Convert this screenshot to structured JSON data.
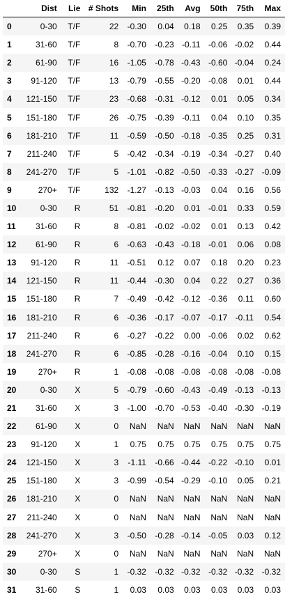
{
  "table": {
    "columns": [
      "",
      "Dist",
      "Lie",
      "# Shots",
      "Min",
      "25th",
      "Avg",
      "50th",
      "75th",
      "Max"
    ],
    "rows": [
      [
        "0",
        "0-30",
        "T/F",
        "22",
        "-0.30",
        "0.04",
        "0.18",
        "0.25",
        "0.35",
        "0.39"
      ],
      [
        "1",
        "31-60",
        "T/F",
        "8",
        "-0.70",
        "-0.23",
        "-0.11",
        "-0.06",
        "-0.02",
        "0.44"
      ],
      [
        "2",
        "61-90",
        "T/F",
        "16",
        "-1.05",
        "-0.78",
        "-0.43",
        "-0.60",
        "-0.04",
        "0.24"
      ],
      [
        "3",
        "91-120",
        "T/F",
        "13",
        "-0.79",
        "-0.55",
        "-0.20",
        "-0.08",
        "0.01",
        "0.44"
      ],
      [
        "4",
        "121-150",
        "T/F",
        "23",
        "-0.68",
        "-0.31",
        "-0.12",
        "0.01",
        "0.05",
        "0.34"
      ],
      [
        "5",
        "151-180",
        "T/F",
        "26",
        "-0.75",
        "-0.39",
        "-0.11",
        "0.04",
        "0.10",
        "0.35"
      ],
      [
        "6",
        "181-210",
        "T/F",
        "11",
        "-0.59",
        "-0.50",
        "-0.18",
        "-0.35",
        "0.25",
        "0.31"
      ],
      [
        "7",
        "211-240",
        "T/F",
        "5",
        "-0.42",
        "-0.34",
        "-0.19",
        "-0.34",
        "-0.27",
        "0.40"
      ],
      [
        "8",
        "241-270",
        "T/F",
        "5",
        "-1.01",
        "-0.82",
        "-0.50",
        "-0.33",
        "-0.27",
        "-0.09"
      ],
      [
        "9",
        "270+",
        "T/F",
        "132",
        "-1.27",
        "-0.13",
        "-0.03",
        "0.04",
        "0.16",
        "0.56"
      ],
      [
        "10",
        "0-30",
        "R",
        "51",
        "-0.81",
        "-0.20",
        "0.01",
        "-0.01",
        "0.33",
        "0.59"
      ],
      [
        "11",
        "31-60",
        "R",
        "8",
        "-0.81",
        "-0.02",
        "-0.02",
        "0.01",
        "0.13",
        "0.42"
      ],
      [
        "12",
        "61-90",
        "R",
        "6",
        "-0.63",
        "-0.43",
        "-0.18",
        "-0.01",
        "0.06",
        "0.08"
      ],
      [
        "13",
        "91-120",
        "R",
        "11",
        "-0.51",
        "0.12",
        "0.07",
        "0.18",
        "0.20",
        "0.23"
      ],
      [
        "14",
        "121-150",
        "R",
        "11",
        "-0.44",
        "-0.30",
        "0.04",
        "0.22",
        "0.27",
        "0.36"
      ],
      [
        "15",
        "151-180",
        "R",
        "7",
        "-0.49",
        "-0.42",
        "-0.12",
        "-0.36",
        "0.11",
        "0.60"
      ],
      [
        "16",
        "181-210",
        "R",
        "6",
        "-0.36",
        "-0.17",
        "-0.07",
        "-0.17",
        "-0.11",
        "0.54"
      ],
      [
        "17",
        "211-240",
        "R",
        "6",
        "-0.27",
        "-0.22",
        "0.00",
        "-0.06",
        "0.02",
        "0.62"
      ],
      [
        "18",
        "241-270",
        "R",
        "6",
        "-0.85",
        "-0.28",
        "-0.16",
        "-0.04",
        "0.10",
        "0.15"
      ],
      [
        "19",
        "270+",
        "R",
        "1",
        "-0.08",
        "-0.08",
        "-0.08",
        "-0.08",
        "-0.08",
        "-0.08"
      ],
      [
        "20",
        "0-30",
        "X",
        "5",
        "-0.79",
        "-0.60",
        "-0.43",
        "-0.49",
        "-0.13",
        "-0.13"
      ],
      [
        "21",
        "31-60",
        "X",
        "3",
        "-1.00",
        "-0.70",
        "-0.53",
        "-0.40",
        "-0.30",
        "-0.19"
      ],
      [
        "22",
        "61-90",
        "X",
        "0",
        "NaN",
        "NaN",
        "NaN",
        "NaN",
        "NaN",
        "NaN"
      ],
      [
        "23",
        "91-120",
        "X",
        "1",
        "0.75",
        "0.75",
        "0.75",
        "0.75",
        "0.75",
        "0.75"
      ],
      [
        "24",
        "121-150",
        "X",
        "3",
        "-1.11",
        "-0.66",
        "-0.44",
        "-0.22",
        "-0.10",
        "0.01"
      ],
      [
        "25",
        "151-180",
        "X",
        "3",
        "-0.99",
        "-0.54",
        "-0.29",
        "-0.10",
        "0.05",
        "0.21"
      ],
      [
        "26",
        "181-210",
        "X",
        "0",
        "NaN",
        "NaN",
        "NaN",
        "NaN",
        "NaN",
        "NaN"
      ],
      [
        "27",
        "211-240",
        "X",
        "0",
        "NaN",
        "NaN",
        "NaN",
        "NaN",
        "NaN",
        "NaN"
      ],
      [
        "28",
        "241-270",
        "X",
        "3",
        "-0.50",
        "-0.28",
        "-0.14",
        "-0.05",
        "0.03",
        "0.12"
      ],
      [
        "29",
        "270+",
        "X",
        "0",
        "NaN",
        "NaN",
        "NaN",
        "NaN",
        "NaN",
        "NaN"
      ],
      [
        "30",
        "0-30",
        "S",
        "1",
        "-0.32",
        "-0.32",
        "-0.32",
        "-0.32",
        "-0.32",
        "-0.32"
      ],
      [
        "31",
        "31-60",
        "S",
        "1",
        "0.03",
        "0.03",
        "0.03",
        "0.03",
        "0.03",
        "0.03"
      ]
    ]
  },
  "colors": {
    "stripe": "#f5f5f5",
    "background": "#ffffff",
    "text": "#000000",
    "header_rule": "#000000"
  }
}
